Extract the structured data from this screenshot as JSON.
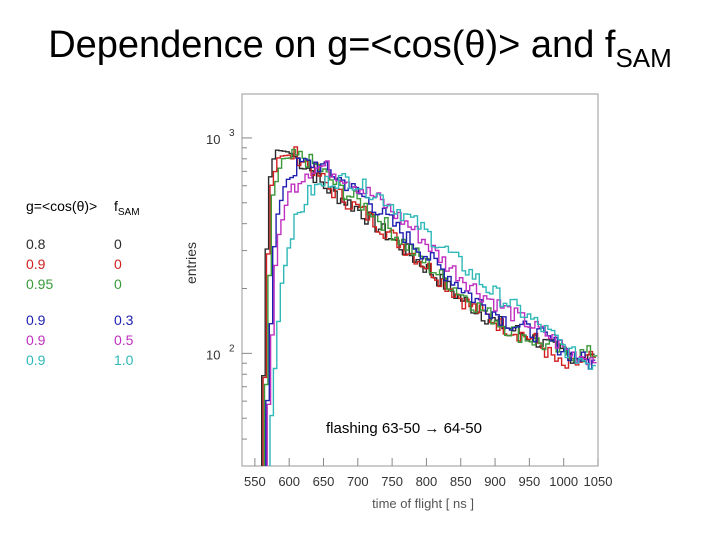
{
  "title": {
    "main": "Dependence on g=<cos(θ)> and f",
    "sub": "SAM"
  },
  "legend": {
    "header_g": "g=<cos(θ)>",
    "header_f": "f",
    "header_f_sub": "SAM",
    "rows": [
      {
        "g": "0.8",
        "f": "0",
        "color": "#2a2a2a"
      },
      {
        "g": "0.9",
        "f": "0",
        "color": "#d02020"
      },
      {
        "g": "0.95",
        "f": "0",
        "color": "#3a9a3a"
      },
      {
        "g": "0.9",
        "f": "0.3",
        "color": "#2020b0"
      },
      {
        "g": "0.9",
        "f": "0.5",
        "color": "#c030c0"
      },
      {
        "g": "0.9",
        "f": "1.0",
        "color": "#30b8b8"
      }
    ]
  },
  "annotation": "flashing 63-50 → 64-50",
  "chart_data": {
    "type": "line",
    "xlabel": "time of flight [ ns ]",
    "ylabel": "entries",
    "x_ticks": [
      "550",
      "600",
      "650",
      "700",
      "750",
      "800",
      "850",
      "900",
      "950",
      "1000",
      "1050"
    ],
    "y_ticks": [
      {
        "label": "10",
        "exp": "3",
        "value": 1000
      },
      {
        "label": "10",
        "exp": "2",
        "value": 100
      }
    ],
    "xlim": [
      540,
      1050
    ],
    "ylim": [
      30,
      1500
    ],
    "yscale": "log",
    "series": [
      {
        "name": "g=0.8 f=0",
        "color": "#2a2a2a",
        "points": [
          [
            560,
            40
          ],
          [
            570,
            600
          ],
          [
            580,
            880
          ],
          [
            600,
            860
          ],
          [
            630,
            720
          ],
          [
            650,
            600
          ],
          [
            700,
            470
          ],
          [
            750,
            340
          ],
          [
            800,
            250
          ],
          [
            850,
            180
          ],
          [
            900,
            140
          ],
          [
            950,
            120
          ],
          [
            1000,
            100
          ],
          [
            1040,
            95
          ]
        ]
      },
      {
        "name": "g=0.9 f=0",
        "color": "#d02020",
        "points": [
          [
            562,
            40
          ],
          [
            572,
            560
          ],
          [
            585,
            820
          ],
          [
            610,
            840
          ],
          [
            640,
            700
          ],
          [
            660,
            580
          ],
          [
            710,
            450
          ],
          [
            760,
            330
          ],
          [
            810,
            240
          ],
          [
            860,
            170
          ],
          [
            910,
            135
          ],
          [
            960,
            115
          ],
          [
            1000,
            85
          ],
          [
            1040,
            95
          ]
        ]
      },
      {
        "name": "g=0.95 f=0",
        "color": "#3a9a3a",
        "points": [
          [
            564,
            40
          ],
          [
            575,
            520
          ],
          [
            590,
            800
          ],
          [
            620,
            820
          ],
          [
            645,
            720
          ],
          [
            670,
            600
          ],
          [
            720,
            460
          ],
          [
            770,
            320
          ],
          [
            820,
            230
          ],
          [
            870,
            170
          ],
          [
            920,
            130
          ],
          [
            970,
            110
          ],
          [
            1005,
            100
          ],
          [
            1040,
            100
          ]
        ]
      },
      {
        "name": "g=0.9 f=0.3",
        "color": "#2020b0",
        "points": [
          [
            566,
            40
          ],
          [
            580,
            400
          ],
          [
            595,
            620
          ],
          [
            615,
            760
          ],
          [
            640,
            760
          ],
          [
            670,
            660
          ],
          [
            720,
            500
          ],
          [
            770,
            350
          ],
          [
            820,
            250
          ],
          [
            870,
            180
          ],
          [
            920,
            140
          ],
          [
            970,
            120
          ],
          [
            1010,
            100
          ],
          [
            1040,
            90
          ]
        ]
      },
      {
        "name": "g=0.9 f=0.5",
        "color": "#c030c0",
        "points": [
          [
            568,
            40
          ],
          [
            582,
            320
          ],
          [
            600,
            560
          ],
          [
            625,
            700
          ],
          [
            650,
            740
          ],
          [
            680,
            660
          ],
          [
            730,
            520
          ],
          [
            780,
            380
          ],
          [
            830,
            260
          ],
          [
            880,
            190
          ],
          [
            930,
            150
          ],
          [
            980,
            120
          ],
          [
            1010,
            100
          ],
          [
            1040,
            95
          ]
        ]
      },
      {
        "name": "g=0.9 f=1.0",
        "color": "#30b8b8",
        "points": [
          [
            572,
            40
          ],
          [
            588,
            200
          ],
          [
            605,
            380
          ],
          [
            630,
            560
          ],
          [
            660,
            640
          ],
          [
            690,
            640
          ],
          [
            740,
            520
          ],
          [
            790,
            390
          ],
          [
            840,
            280
          ],
          [
            890,
            200
          ],
          [
            940,
            155
          ],
          [
            985,
            120
          ],
          [
            1010,
            100
          ],
          [
            1040,
            90
          ]
        ]
      }
    ]
  }
}
